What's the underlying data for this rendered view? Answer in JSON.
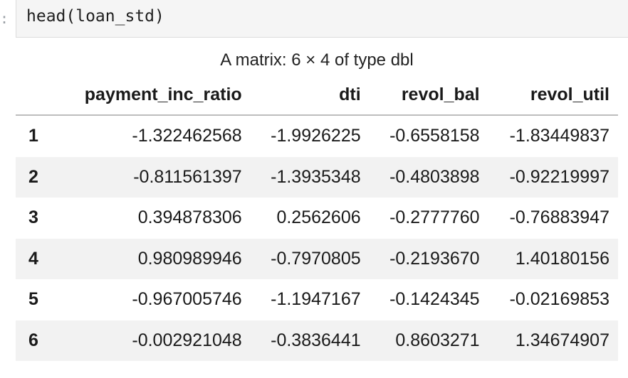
{
  "cell": {
    "prompt_marker": ":",
    "code": "head(loan_std)"
  },
  "output": {
    "caption": "A matrix: 6 × 4 of type dbl",
    "columns": [
      "payment_inc_ratio",
      "dti",
      "revol_bal",
      "revol_util"
    ],
    "rows": [
      {
        "name": "1",
        "values": [
          "-1.322462568",
          "-1.9926225",
          "-0.6558158",
          "-1.83449837"
        ]
      },
      {
        "name": "2",
        "values": [
          "-0.811561397",
          "-1.3935348",
          "-0.4803898",
          "-0.92219997"
        ]
      },
      {
        "name": "3",
        "values": [
          "0.394878306",
          "0.2562606",
          "-0.2777760",
          "-0.76883947"
        ]
      },
      {
        "name": "4",
        "values": [
          "0.980989946",
          "-0.7970805",
          "-0.2193670",
          "1.40180156"
        ]
      },
      {
        "name": "5",
        "values": [
          "-0.967005746",
          "-1.1947167",
          "-0.1424345",
          "-0.02169853"
        ]
      },
      {
        "name": "6",
        "values": [
          "-0.002921048",
          "-0.3836441",
          "0.8603271",
          "1.34674907"
        ]
      }
    ]
  }
}
